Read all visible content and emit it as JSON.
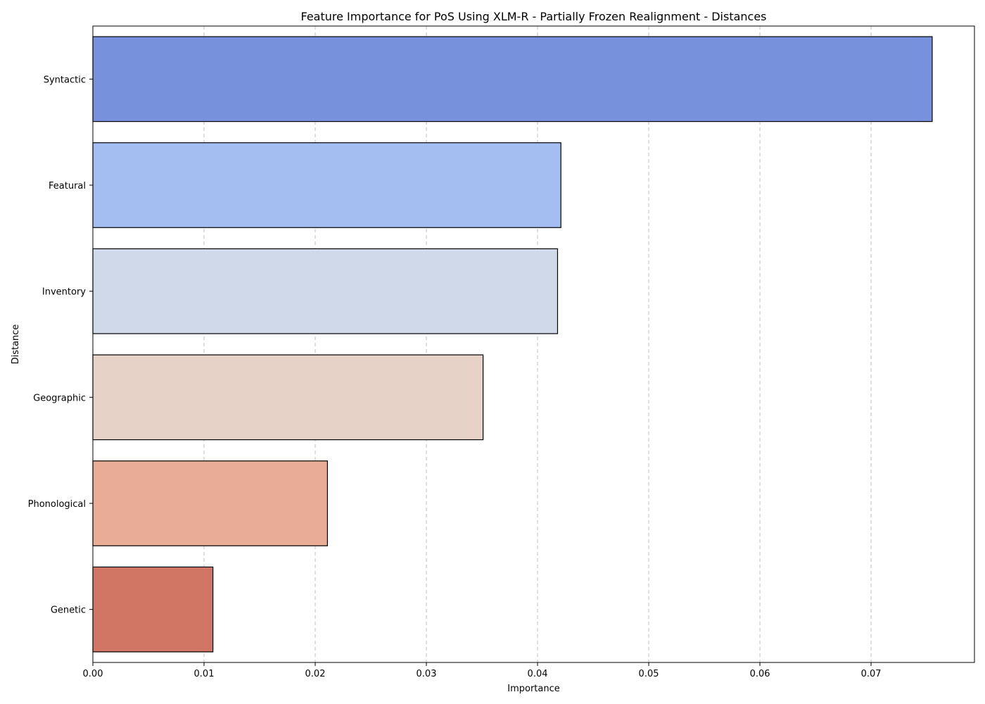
{
  "chart_data": {
    "type": "bar",
    "orientation": "horizontal",
    "title": "Feature Importance for PoS Using XLM-R - Partially Frozen Realignment - Distances",
    "xlabel": "Importance",
    "ylabel": "Distance",
    "categories": [
      "Syntactic",
      "Featural",
      "Inventory",
      "Geographic",
      "Phonological",
      "Genetic"
    ],
    "values": [
      0.0755,
      0.0421,
      0.0418,
      0.0351,
      0.0211,
      0.0108
    ],
    "colors": [
      "#7891dc",
      "#a4bef2",
      "#cfd9e9",
      "#e7d2c8",
      "#e9ad97",
      "#d17665"
    ],
    "xlim": [
      0,
      0.0793
    ],
    "xticks": [
      0.0,
      0.01,
      0.02,
      0.03,
      0.04,
      0.05,
      0.06,
      0.07
    ],
    "xtick_labels": [
      "0.00",
      "0.01",
      "0.02",
      "0.03",
      "0.04",
      "0.05",
      "0.06",
      "0.07"
    ],
    "grid": "x-dashed",
    "legend": "none"
  }
}
